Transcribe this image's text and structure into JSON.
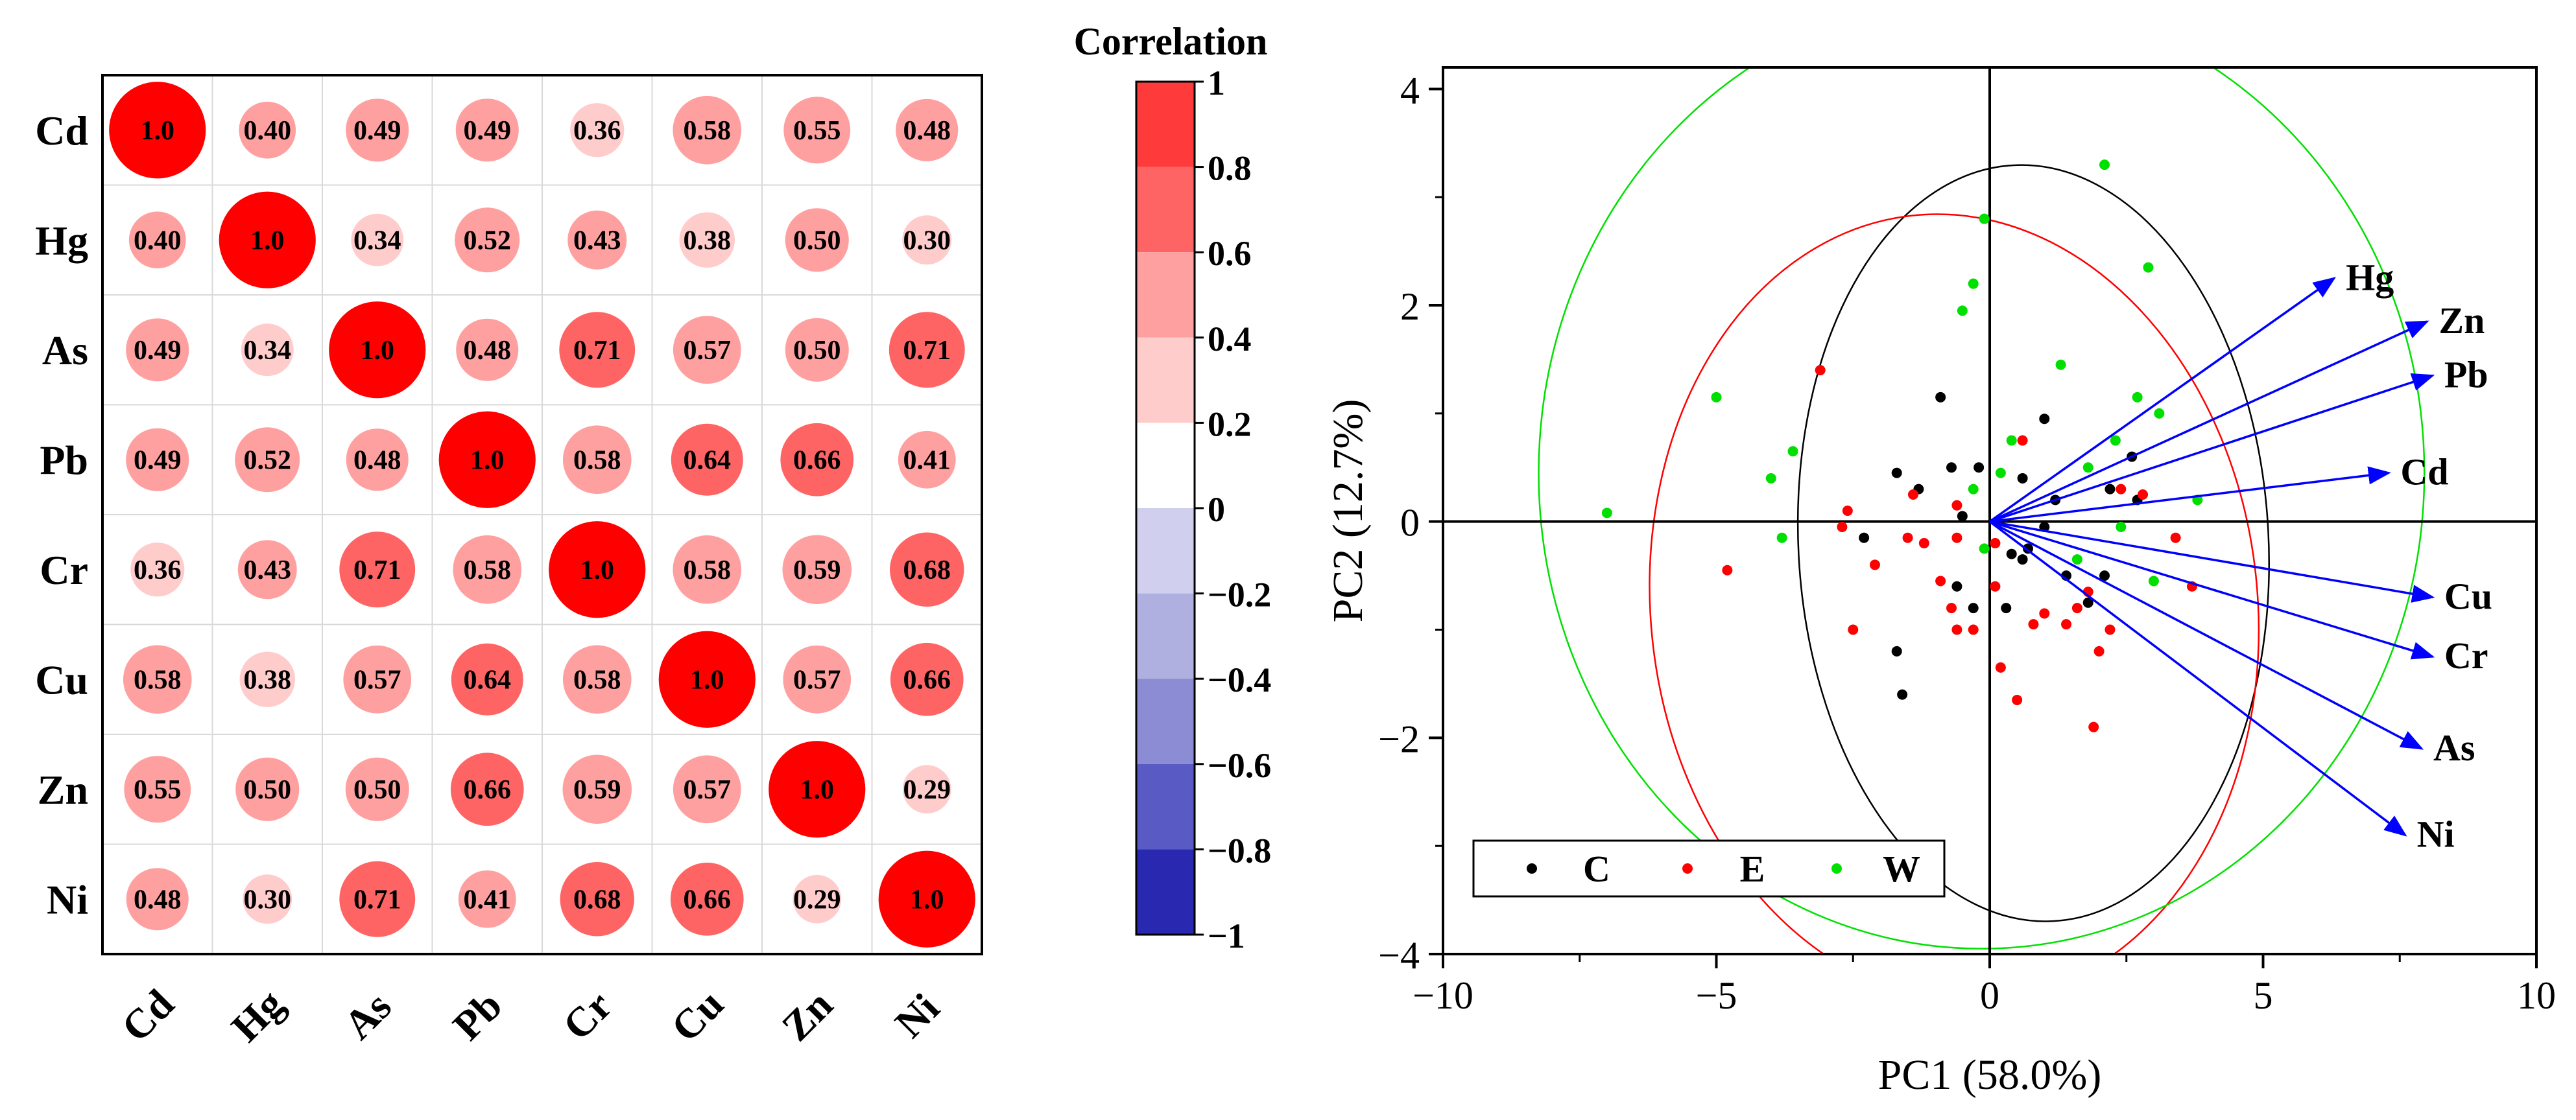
{
  "colors": {
    "pos_strong": "#ff0000",
    "neg_strong": "#00009c",
    "cat_C": "#000000",
    "cat_E": "#ff0000",
    "cat_W": "#00e000",
    "loading_arrow": "#0000ff",
    "gridline": "#d9d9d9"
  },
  "chart_data": [
    {
      "type": "heatmap",
      "title": "Correlation",
      "variables": [
        "Cd",
        "Hg",
        "As",
        "Pb",
        "Cr",
        "Cu",
        "Zn",
        "Ni"
      ],
      "matrix": [
        [
          1.0,
          0.4,
          0.49,
          0.49,
          0.36,
          0.58,
          0.55,
          0.48
        ],
        [
          0.4,
          1.0,
          0.34,
          0.52,
          0.43,
          0.38,
          0.5,
          0.3
        ],
        [
          0.49,
          0.34,
          1.0,
          0.48,
          0.71,
          0.57,
          0.5,
          0.71
        ],
        [
          0.49,
          0.52,
          0.48,
          1.0,
          0.58,
          0.64,
          0.66,
          0.41
        ],
        [
          0.36,
          0.43,
          0.71,
          0.58,
          1.0,
          0.58,
          0.59,
          0.68
        ],
        [
          0.58,
          0.38,
          0.57,
          0.64,
          0.58,
          1.0,
          0.57,
          0.66
        ],
        [
          0.55,
          0.5,
          0.5,
          0.66,
          0.59,
          0.57,
          1.0,
          0.29
        ],
        [
          0.48,
          0.3,
          0.71,
          0.41,
          0.68,
          0.66,
          0.29,
          1.0
        ]
      ],
      "cell_labels": [
        [
          "1.0",
          "0.40",
          "0.49",
          "0.49",
          "0.36",
          "0.58",
          "0.55",
          "0.48"
        ],
        [
          "0.40",
          "1.0",
          "0.34",
          "0.52",
          "0.43",
          "0.38",
          "0.50",
          "0.30"
        ],
        [
          "0.49",
          "0.34",
          "1.0",
          "0.48",
          "0.71",
          "0.57",
          "0.50",
          "0.71"
        ],
        [
          "0.49",
          "0.52",
          "0.48",
          "1.0",
          "0.58",
          "0.64",
          "0.66",
          "0.41"
        ],
        [
          "0.36",
          "0.43",
          "0.71",
          "0.58",
          "1.0",
          "0.58",
          "0.59",
          "0.68"
        ],
        [
          "0.58",
          "0.38",
          "0.57",
          "0.64",
          "0.58",
          "1.0",
          "0.57",
          "0.66"
        ],
        [
          "0.55",
          "0.50",
          "0.50",
          "0.66",
          "0.59",
          "0.57",
          "1.0",
          "0.29"
        ],
        [
          "0.48",
          "0.30",
          "0.71",
          "0.41",
          "0.68",
          "0.66",
          "0.29",
          "1.0"
        ]
      ],
      "colorbar": {
        "range": [
          -1,
          1
        ],
        "ticks": [
          "1",
          "0.8",
          "0.6",
          "0.4",
          "0.2",
          "0",
          "−0.2",
          "−0.4",
          "−0.6",
          "−0.8",
          "−1"
        ],
        "levels": [
          {
            "from": 0.8,
            "to": 1.0,
            "color": "#ff3a3a"
          },
          {
            "from": 0.6,
            "to": 0.8,
            "color": "#ff6464"
          },
          {
            "from": 0.4,
            "to": 0.6,
            "color": "#ffa0a0"
          },
          {
            "from": 0.2,
            "to": 0.4,
            "color": "#ffcccc"
          },
          {
            "from": 0.0,
            "to": 0.2,
            "color": "#ffffff"
          },
          {
            "from": -0.2,
            "to": 0.0,
            "color": "#d0d0ee"
          },
          {
            "from": -0.4,
            "to": -0.2,
            "color": "#b0b0e0"
          },
          {
            "from": -0.6,
            "to": -0.4,
            "color": "#8c8cd4"
          },
          {
            "from": -0.8,
            "to": -0.6,
            "color": "#5a5ac4"
          },
          {
            "from": -1.0,
            "to": -0.8,
            "color": "#2828b0"
          }
        ]
      }
    },
    {
      "type": "scatter",
      "subtype": "pca-biplot",
      "xlabel": "PC1 (58.0%)",
      "ylabel": "PC2 (12.7%)",
      "xlim": [
        -10,
        10
      ],
      "ylim": [
        -4,
        4.2
      ],
      "x_ticks": [
        -10,
        -5,
        0,
        5,
        10
      ],
      "y_ticks": [
        -4,
        -2,
        0,
        2,
        4
      ],
      "x_tick_labels": [
        "−10",
        "−5",
        "0",
        "5",
        "10"
      ],
      "y_tick_labels": [
        "−4",
        "−2",
        "0",
        "2",
        "4"
      ],
      "legend": {
        "position": "bottom-left",
        "entries": [
          "C",
          "E",
          "W"
        ]
      },
      "series": [
        {
          "name": "C",
          "points": [
            [
              -1.7,
              0.45
            ],
            [
              -1.3,
              0.3
            ],
            [
              -0.9,
              1.15
            ],
            [
              -0.7,
              0.5
            ],
            [
              -0.5,
              0.05
            ],
            [
              -0.2,
              0.5
            ],
            [
              1.0,
              0.95
            ],
            [
              1.2,
              0.2
            ],
            [
              0.6,
              0.4
            ],
            [
              2.2,
              0.3
            ],
            [
              2.6,
              0.6
            ],
            [
              -0.6,
              -0.6
            ],
            [
              -0.3,
              -0.8
            ],
            [
              0.3,
              -0.8
            ],
            [
              0.7,
              -0.25
            ],
            [
              1.4,
              -0.5
            ],
            [
              1.8,
              -0.75
            ],
            [
              2.1,
              -0.5
            ],
            [
              -1.7,
              -1.2
            ],
            [
              -1.6,
              -1.6
            ],
            [
              -2.3,
              -0.15
            ],
            [
              1.0,
              -0.05
            ],
            [
              0.4,
              -0.3
            ],
            [
              0.6,
              -0.35
            ],
            [
              2.7,
              0.2
            ]
          ]
        },
        {
          "name": "E",
          "points": [
            [
              -4.8,
              -0.45
            ],
            [
              -3.1,
              1.4
            ],
            [
              -2.6,
              0.1
            ],
            [
              -2.7,
              -0.05
            ],
            [
              -2.5,
              -1.0
            ],
            [
              -2.1,
              -0.4
            ],
            [
              -1.5,
              -0.15
            ],
            [
              -1.4,
              0.25
            ],
            [
              -1.2,
              -0.2
            ],
            [
              -0.9,
              -0.55
            ],
            [
              -0.7,
              -0.8
            ],
            [
              -0.6,
              0.15
            ],
            [
              -0.6,
              -0.15
            ],
            [
              -0.3,
              -1.0
            ],
            [
              0.1,
              -0.2
            ],
            [
              0.2,
              -1.35
            ],
            [
              0.5,
              -1.65
            ],
            [
              0.1,
              -0.6
            ],
            [
              0.8,
              -0.95
            ],
            [
              1.0,
              -0.85
            ],
            [
              1.4,
              -0.95
            ],
            [
              1.8,
              -0.65
            ],
            [
              2.4,
              0.3
            ],
            [
              2.8,
              0.25
            ],
            [
              3.4,
              -0.15
            ],
            [
              3.7,
              -0.6
            ],
            [
              2.2,
              -1.0
            ],
            [
              2.0,
              -1.2
            ],
            [
              1.9,
              -1.9
            ],
            [
              0.6,
              0.75
            ],
            [
              -0.6,
              -1.0
            ],
            [
              1.6,
              -0.8
            ]
          ]
        },
        {
          "name": "W",
          "points": [
            [
              -7.0,
              0.08
            ],
            [
              -5.0,
              1.15
            ],
            [
              -4.0,
              0.4
            ],
            [
              -3.6,
              0.65
            ],
            [
              -3.8,
              -0.15
            ],
            [
              -0.1,
              2.8
            ],
            [
              -0.3,
              2.2
            ],
            [
              -0.5,
              1.95
            ],
            [
              0.2,
              0.45
            ],
            [
              0.4,
              0.75
            ],
            [
              1.3,
              1.45
            ],
            [
              2.1,
              3.3
            ],
            [
              2.9,
              2.35
            ],
            [
              2.7,
              1.15
            ],
            [
              2.3,
              0.75
            ],
            [
              3.1,
              1.0
            ],
            [
              1.8,
              0.5
            ],
            [
              3.8,
              0.2
            ],
            [
              3.0,
              -0.55
            ],
            [
              2.4,
              -0.05
            ],
            [
              1.6,
              -0.35
            ],
            [
              -0.3,
              0.3
            ],
            [
              -0.1,
              -0.25
            ]
          ]
        }
      ],
      "ellipses": [
        {
          "name": "C",
          "center": [
            0.8,
            -0.2
          ],
          "rx": 4.3,
          "ry": 3.5,
          "angle_deg": 3
        },
        {
          "name": "E",
          "center": [
            -0.65,
            -0.8
          ],
          "rx": 5.55,
          "ry": 3.65,
          "angle_deg": 6
        },
        {
          "name": "W",
          "center": [
            -0.15,
            0.45
          ],
          "rx": 8.1,
          "ry": 4.4,
          "angle_deg": 0
        }
      ],
      "loadings": [
        {
          "name": "Hg",
          "x": 6.3,
          "y": 2.25
        },
        {
          "name": "Zn",
          "x": 8.0,
          "y": 1.85
        },
        {
          "name": "Pb",
          "x": 8.1,
          "y": 1.35
        },
        {
          "name": "Cd",
          "x": 7.3,
          "y": 0.45
        },
        {
          "name": "Cu",
          "x": 8.1,
          "y": -0.7
        },
        {
          "name": "Cr",
          "x": 8.1,
          "y": -1.25
        },
        {
          "name": "As",
          "x": 7.9,
          "y": -2.1
        },
        {
          "name": "Ni",
          "x": 7.6,
          "y": -2.9
        }
      ]
    }
  ]
}
